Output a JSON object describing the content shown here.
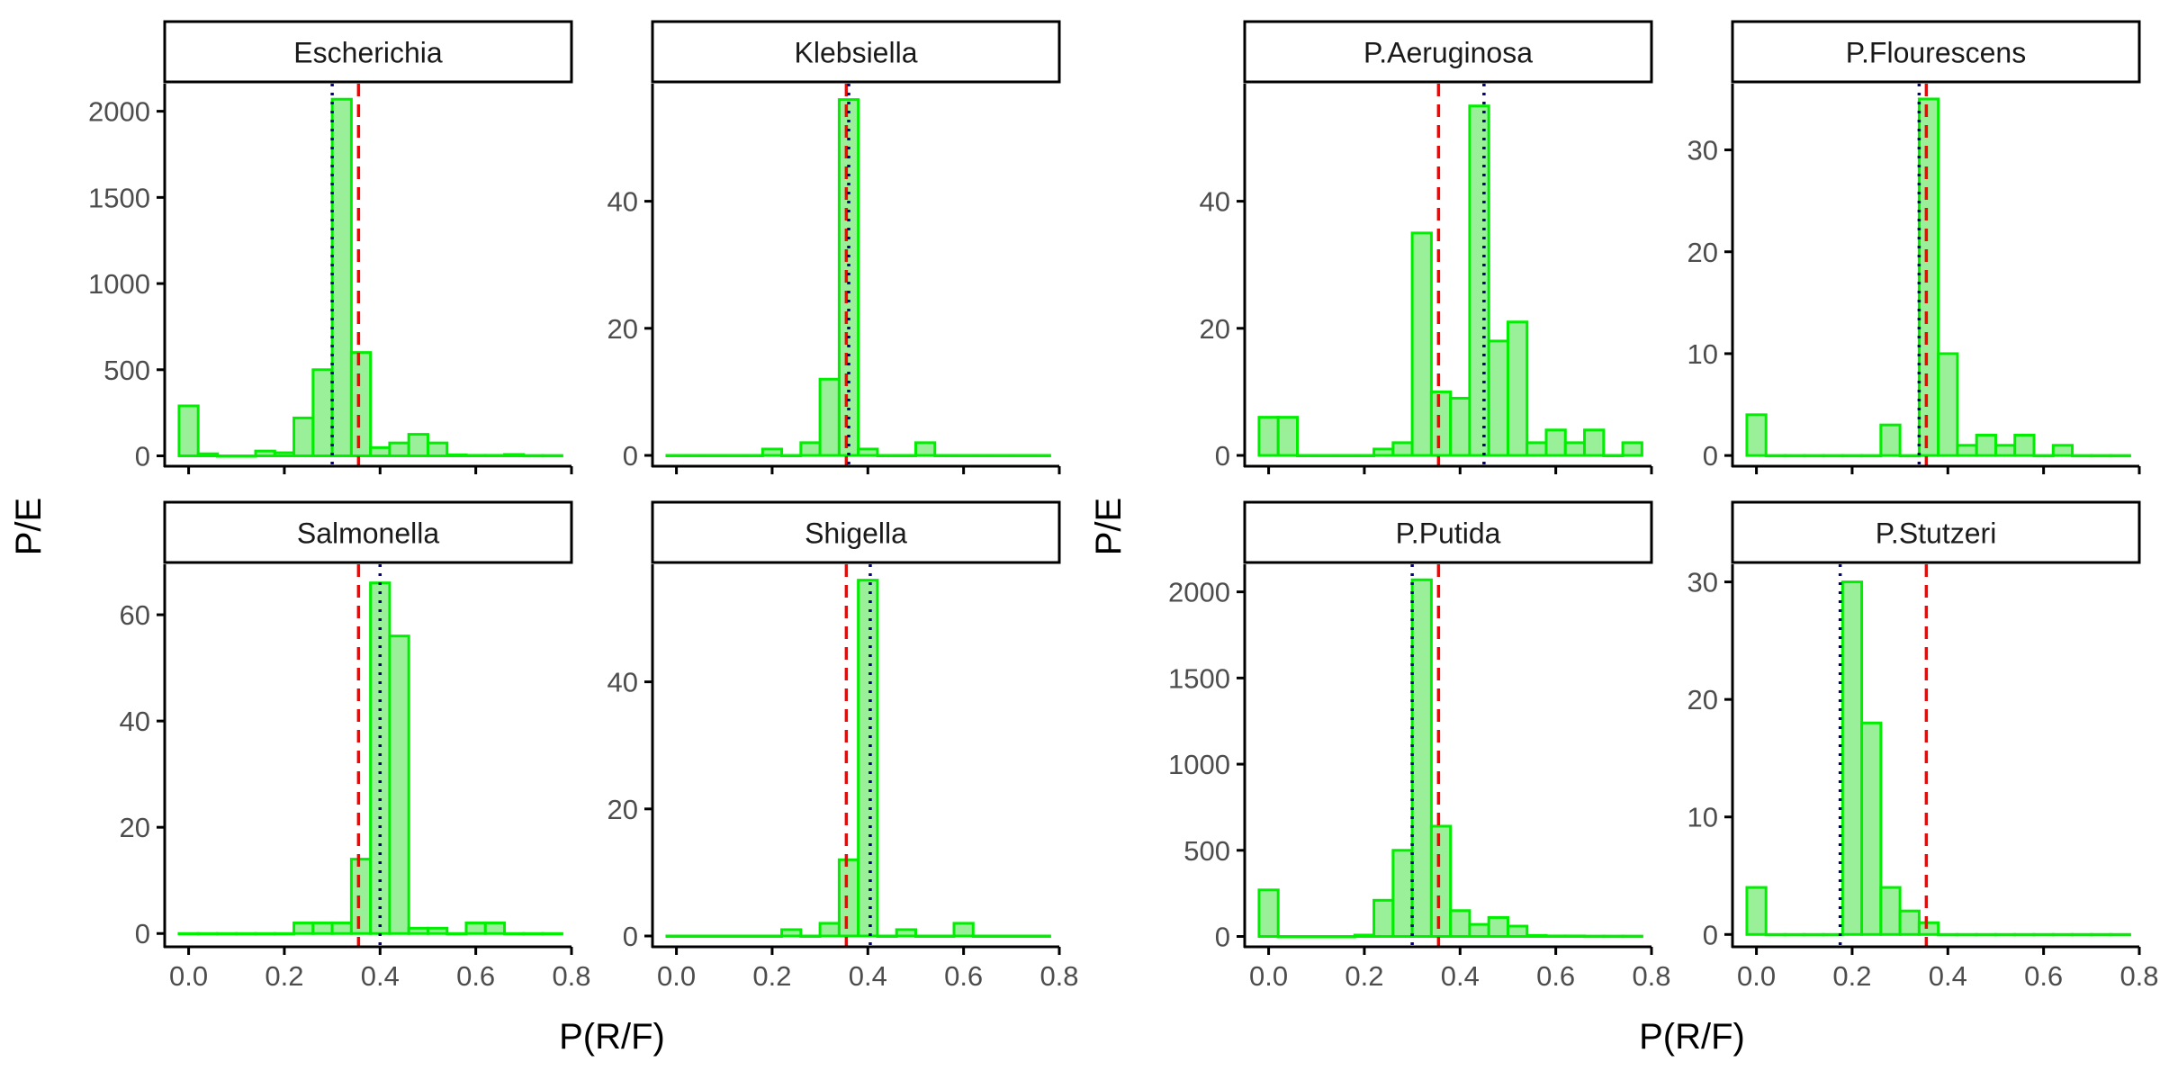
{
  "figure": {
    "ylabel_left": "P/E",
    "ylabel_right": "P/E",
    "xlabel_left": "P(R/F)",
    "xlabel_right": "P(R/F)"
  },
  "colors": {
    "bar_fill": "#99f099",
    "bar_stroke": "#00ee00",
    "red_line": "#ff0000",
    "blue_line": "#00008b",
    "strip_stroke": "#000000",
    "axis": "#000000",
    "tick_text": "#4d4d4d"
  },
  "chart_data": [
    {
      "type": "bar",
      "title": "Escherichia",
      "xlim": [
        -0.05,
        0.8
      ],
      "ylim": [
        -60,
        2160
      ],
      "xticks": [
        0.0,
        0.2,
        0.4,
        0.6,
        0.8
      ],
      "xtick_labels": [
        "0.0",
        "0.2",
        "0.4",
        "0.6",
        "0.8"
      ],
      "yticks": [
        0,
        500,
        1000,
        1500,
        2000
      ],
      "ytick_labels": [
        "0",
        "500",
        "1000",
        "1500",
        "2000"
      ],
      "x": [
        0.0,
        0.04,
        0.08,
        0.12,
        0.16,
        0.2,
        0.24,
        0.28,
        0.32,
        0.36,
        0.4,
        0.44,
        0.48,
        0.52,
        0.56,
        0.6,
        0.64,
        0.68,
        0.72,
        0.76
      ],
      "values": [
        290,
        12,
        0,
        0,
        28,
        18,
        220,
        500,
        2070,
        600,
        48,
        75,
        125,
        75,
        6,
        3,
        3,
        8,
        2,
        2
      ],
      "vline_dashed": 0.355,
      "vline_dotted": 0.3
    },
    {
      "type": "bar",
      "title": "Klebsiella",
      "xlim": [
        -0.05,
        0.8
      ],
      "ylim": [
        -1.7,
        58.5
      ],
      "xticks": [
        0.0,
        0.2,
        0.4,
        0.6,
        0.8
      ],
      "xtick_labels": [
        "0.0",
        "0.2",
        "0.4",
        "0.6",
        "0.8"
      ],
      "yticks": [
        0,
        20,
        40
      ],
      "ytick_labels": [
        "0",
        "20",
        "40"
      ],
      "x": [
        0.0,
        0.04,
        0.08,
        0.12,
        0.16,
        0.2,
        0.24,
        0.28,
        0.32,
        0.36,
        0.4,
        0.44,
        0.48,
        0.52,
        0.56,
        0.6,
        0.64,
        0.68,
        0.72,
        0.76
      ],
      "values": [
        0,
        0,
        0,
        0,
        0,
        1,
        0,
        2,
        12,
        56,
        1,
        0,
        0,
        2,
        0,
        0,
        0,
        0,
        0,
        0
      ],
      "vline_dashed": 0.355,
      "vline_dotted": 0.36
    },
    {
      "type": "bar",
      "title": "P.Aeruginosa",
      "xlim": [
        -0.05,
        0.8
      ],
      "ylim": [
        -1.7,
        58.5
      ],
      "xticks": [
        0.0,
        0.2,
        0.4,
        0.6,
        0.8
      ],
      "xtick_labels": [
        "0.0",
        "0.2",
        "0.4",
        "0.6",
        "0.8"
      ],
      "yticks": [
        0,
        20,
        40
      ],
      "ytick_labels": [
        "0",
        "20",
        "40"
      ],
      "x": [
        0.0,
        0.04,
        0.08,
        0.12,
        0.16,
        0.2,
        0.24,
        0.28,
        0.32,
        0.36,
        0.4,
        0.44,
        0.48,
        0.52,
        0.56,
        0.6,
        0.64,
        0.68,
        0.72,
        0.76
      ],
      "values": [
        6,
        6,
        0,
        0,
        0,
        0,
        1,
        2,
        35,
        10,
        9,
        55,
        18,
        21,
        2,
        4,
        2,
        4,
        0,
        2
      ],
      "vline_dashed": 0.355,
      "vline_dotted": 0.45
    },
    {
      "type": "bar",
      "title": "P.Flourescens",
      "xlim": [
        -0.05,
        0.8
      ],
      "ylim": [
        -1.05,
        36.5
      ],
      "xticks": [
        0.0,
        0.2,
        0.4,
        0.6,
        0.8
      ],
      "xtick_labels": [
        "0.0",
        "0.2",
        "0.4",
        "0.6",
        "0.8"
      ],
      "yticks": [
        0,
        10,
        20,
        30
      ],
      "ytick_labels": [
        "0",
        "10",
        "20",
        "30"
      ],
      "x": [
        0.0,
        0.04,
        0.08,
        0.12,
        0.16,
        0.2,
        0.24,
        0.28,
        0.32,
        0.36,
        0.4,
        0.44,
        0.48,
        0.52,
        0.56,
        0.6,
        0.64,
        0.68,
        0.72,
        0.76
      ],
      "values": [
        4,
        0,
        0,
        0,
        0,
        0,
        0,
        3,
        0,
        35,
        10,
        1,
        2,
        1,
        2,
        0,
        1,
        0,
        0,
        0
      ],
      "vline_dashed": 0.355,
      "vline_dotted": 0.34
    },
    {
      "type": "bar",
      "title": "Salmonella",
      "xlim": [
        -0.05,
        0.8
      ],
      "ylim": [
        -2.5,
        69.5
      ],
      "xticks": [
        0.0,
        0.2,
        0.4,
        0.6,
        0.8
      ],
      "xtick_labels": [
        "0.0",
        "0.2",
        "0.4",
        "0.6",
        "0.8"
      ],
      "yticks": [
        0,
        20,
        40,
        60
      ],
      "ytick_labels": [
        "0",
        "20",
        "40",
        "60"
      ],
      "x": [
        0.0,
        0.04,
        0.08,
        0.12,
        0.16,
        0.2,
        0.24,
        0.28,
        0.32,
        0.36,
        0.4,
        0.44,
        0.48,
        0.52,
        0.56,
        0.6,
        0.64,
        0.68,
        0.72,
        0.76
      ],
      "values": [
        0,
        0,
        0,
        0,
        0,
        0,
        2,
        2,
        2,
        14,
        66,
        56,
        1,
        1,
        0,
        2,
        2,
        0,
        0,
        0
      ],
      "vline_dashed": 0.355,
      "vline_dotted": 0.4
    },
    {
      "type": "bar",
      "title": "Shigella",
      "xlim": [
        -0.05,
        0.8
      ],
      "ylim": [
        -1.7,
        58.5
      ],
      "xticks": [
        0.0,
        0.2,
        0.4,
        0.6,
        0.8
      ],
      "xtick_labels": [
        "0.0",
        "0.2",
        "0.4",
        "0.6",
        "0.8"
      ],
      "yticks": [
        0,
        20,
        40
      ],
      "ytick_labels": [
        "0",
        "20",
        "40"
      ],
      "x": [
        0.0,
        0.04,
        0.08,
        0.12,
        0.16,
        0.2,
        0.24,
        0.28,
        0.32,
        0.36,
        0.4,
        0.44,
        0.48,
        0.52,
        0.56,
        0.6,
        0.64,
        0.68,
        0.72,
        0.76
      ],
      "values": [
        0,
        0,
        0,
        0,
        0,
        0,
        1,
        0,
        2,
        12,
        56,
        0,
        1,
        0,
        0,
        2,
        0,
        0,
        0,
        0
      ],
      "vline_dashed": 0.355,
      "vline_dotted": 0.405
    },
    {
      "type": "bar",
      "title": "P.Putida",
      "xlim": [
        -0.05,
        0.8
      ],
      "ylim": [
        -60,
        2160
      ],
      "xticks": [
        0.0,
        0.2,
        0.4,
        0.6,
        0.8
      ],
      "xtick_labels": [
        "0.0",
        "0.2",
        "0.4",
        "0.6",
        "0.8"
      ],
      "yticks": [
        0,
        500,
        1000,
        1500,
        2000
      ],
      "ytick_labels": [
        "0",
        "500",
        "1000",
        "1500",
        "2000"
      ],
      "x": [
        0.0,
        0.04,
        0.08,
        0.12,
        0.16,
        0.2,
        0.24,
        0.28,
        0.32,
        0.36,
        0.4,
        0.44,
        0.48,
        0.52,
        0.56,
        0.6,
        0.64,
        0.68,
        0.72,
        0.76
      ],
      "values": [
        270,
        0,
        0,
        0,
        0,
        8,
        210,
        500,
        2070,
        640,
        150,
        70,
        110,
        60,
        6,
        3,
        3,
        2,
        2,
        2
      ],
      "vline_dashed": 0.355,
      "vline_dotted": 0.3
    },
    {
      "type": "bar",
      "title": "P.Stutzeri",
      "xlim": [
        -0.05,
        0.8
      ],
      "ylim": [
        -1.05,
        31.5
      ],
      "xticks": [
        0.0,
        0.2,
        0.4,
        0.6,
        0.8
      ],
      "xtick_labels": [
        "0.0",
        "0.2",
        "0.4",
        "0.6",
        "0.8"
      ],
      "yticks": [
        0,
        10,
        20,
        30
      ],
      "ytick_labels": [
        "0",
        "10",
        "20",
        "30"
      ],
      "x": [
        0.0,
        0.04,
        0.08,
        0.12,
        0.16,
        0.2,
        0.24,
        0.28,
        0.32,
        0.36,
        0.4,
        0.44,
        0.48,
        0.52,
        0.56,
        0.6,
        0.64,
        0.68,
        0.72,
        0.76
      ],
      "values": [
        4,
        0,
        0,
        0,
        0,
        30,
        18,
        4,
        2,
        1,
        0,
        0,
        0,
        0,
        0,
        0,
        0,
        0,
        0,
        0
      ],
      "vline_dashed": 0.355,
      "vline_dotted": 0.175
    }
  ]
}
